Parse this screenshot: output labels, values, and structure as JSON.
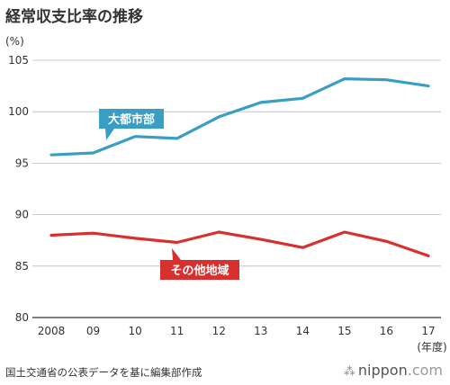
{
  "header": {
    "title": "経常収支比率の推移",
    "unit": "(%)"
  },
  "footer": {
    "source": "国土交通省の公表データを基に編集部作成",
    "logo_text": "nippon",
    "logo_suffix": ".com"
  },
  "chart_data": {
    "type": "line",
    "title": "経常収支比率の推移",
    "ylabel": "(%)",
    "xlabel": "(年度)",
    "categories": [
      "2008",
      "09",
      "10",
      "11",
      "12",
      "13",
      "14",
      "15",
      "16",
      "17"
    ],
    "ylim": [
      80,
      105
    ],
    "yticks": [
      80,
      85,
      90,
      95,
      100,
      105
    ],
    "grid": true,
    "series": [
      {
        "name": "大都市部",
        "color": "#3a9dc3",
        "values": [
          95.8,
          96.0,
          97.6,
          97.4,
          99.5,
          100.9,
          101.3,
          103.2,
          103.1,
          102.5
        ]
      },
      {
        "name": "その他地域",
        "color": "#d8302e",
        "values": [
          88.0,
          88.2,
          87.7,
          87.3,
          88.3,
          87.6,
          86.8,
          88.3,
          87.4,
          86.0
        ]
      }
    ]
  }
}
